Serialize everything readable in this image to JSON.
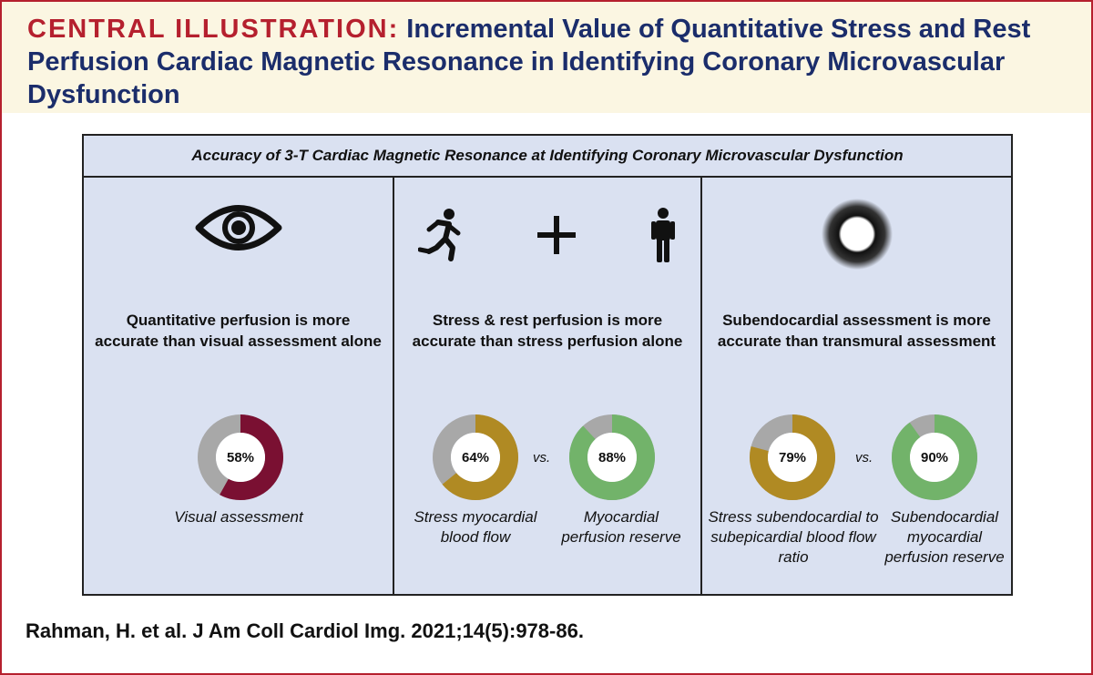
{
  "header": {
    "label": "CENTRAL ILLUSTRATION:",
    "title": "Incremental Value of Quantitative Stress and Rest Perfusion Cardiac Magnetic Resonance in Identifying Coronary Microvascular Dysfunction"
  },
  "panel": {
    "title": "Accuracy of 3-T Cardiac Magnetic Resonance at Identifying Coronary Microvascular Dysfunction",
    "columns": [
      {
        "icon": "eye-icon",
        "statement": "Quantitative perfusion is more accurate than visual assessment alone",
        "donuts": [
          {
            "value": 58,
            "label": "58%",
            "color": "#7a1032",
            "caption": "Visual assessment"
          }
        ]
      },
      {
        "icons": [
          "running-person-icon",
          "plus-icon",
          "standing-person-icon"
        ],
        "statement": "Stress & rest perfusion is more accurate than stress perfusion alone",
        "vs": "vs.",
        "donuts": [
          {
            "value": 64,
            "label": "64%",
            "color": "#b08a23",
            "caption": "Stress myocardial blood flow"
          },
          {
            "value": 88,
            "label": "88%",
            "color": "#72b36a",
            "caption": "Myocardial perfusion reserve"
          }
        ]
      },
      {
        "icon": "myocardium-ring-icon",
        "statement": "Subendocardial assessment is more accurate than transmural assessment",
        "vs": "vs.",
        "donuts": [
          {
            "value": 79,
            "label": "79%",
            "color": "#b08a23",
            "caption": "Stress subendocardial to subepicardial blood flow ratio"
          },
          {
            "value": 90,
            "label": "90%",
            "color": "#72b36a",
            "caption": "Subendocardial myocardial perfusion reserve"
          }
        ]
      }
    ]
  },
  "colors": {
    "frame": "#b5202e",
    "header_bg": "#fbf6e2",
    "title_text": "#1b2d6b",
    "panel_bg": "#dae1f1",
    "donut_remainder": "#a8a8a8"
  },
  "citation": "Rahman, H. et al. J Am Coll Cardiol Img. 2021;14(5):978-86."
}
